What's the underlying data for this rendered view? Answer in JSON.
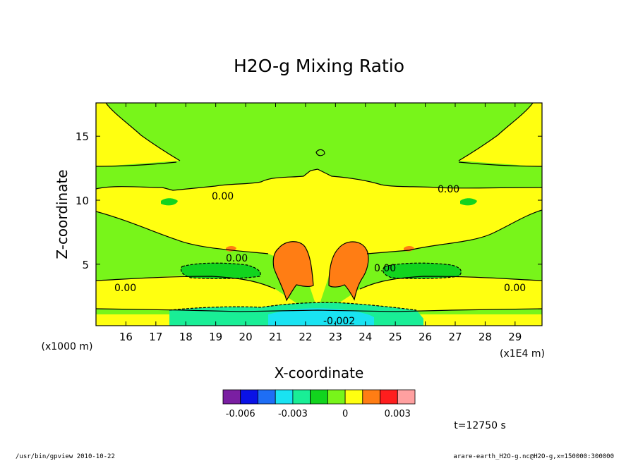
{
  "chart_data": {
    "type": "contour",
    "title": "H2O-g Mixing Ratio",
    "xlabel": "X-coordinate",
    "ylabel": "Z-coordinate",
    "x_unit_label": "(x1E4 m)",
    "y_unit_label": "(x1000 m)",
    "x_ticks": [
      "16",
      "17",
      "18",
      "19",
      "20",
      "21",
      "22",
      "23",
      "24",
      "25",
      "26",
      "27",
      "28",
      "29"
    ],
    "x_tick_values": [
      16,
      17,
      18,
      19,
      20,
      21,
      22,
      23,
      24,
      25,
      26,
      27,
      28,
      29
    ],
    "y_ticks": [
      "5",
      "10",
      "15"
    ],
    "y_tick_values": [
      5,
      10,
      15
    ],
    "xlim": [
      15,
      29.9
    ],
    "ylim": [
      0.2,
      17.6
    ],
    "contour_labels": [
      "0.00",
      "0.00",
      "0.00",
      "0.00",
      "0.00",
      "0.00",
      "-0.002"
    ],
    "colorbar": {
      "colors": [
        "#7a1fa2",
        "#0a12e6",
        "#1e6ef5",
        "#19e3f2",
        "#19ee96",
        "#12d41e",
        "#78f51a",
        "#ffff10",
        "#ff7d14",
        "#ff1e1e",
        "#ffa0a0"
      ],
      "tick_labels": [
        "-0.006",
        "-0.003",
        "0",
        "0.003"
      ],
      "tick_values": [
        -0.006,
        -0.003,
        0,
        0.003
      ],
      "range": [
        -0.007,
        0.004
      ]
    },
    "colors": {
      "background": "#78f51a",
      "positive_small": "#ffff10",
      "positive_mid": "#ff7d14",
      "negative_small": "#12d41e",
      "negative_mid": "#19ee96",
      "negative_large": "#19e3f2"
    }
  },
  "annotations": {
    "time": "t=12750 s",
    "footer_left": "/usr/bin/gpview  2010-10-22",
    "footer_right": "arare-earth_H2O-g.nc@H2O-g,x=150000:300000"
  }
}
